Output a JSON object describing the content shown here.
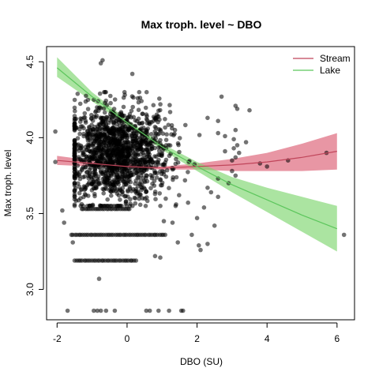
{
  "chart_data": {
    "type": "scatter",
    "title": "Max troph. level ~ DBO",
    "xlabel": "DBO (SU)",
    "ylabel": "Max troph. level",
    "xlim": [
      -2.3,
      6.5
    ],
    "ylim": [
      2.8,
      4.6
    ],
    "xticks": [
      -2,
      0,
      2,
      4,
      6
    ],
    "yticks": [
      3.0,
      3.5,
      4.0,
      4.5
    ],
    "xtick_labels": [
      "-2",
      "0",
      "2",
      "4",
      "6"
    ],
    "ytick_labels": [
      "3.0",
      "3.5",
      "4.0",
      "4.5"
    ],
    "grid": false,
    "legend": {
      "placement": "top-right",
      "entries": [
        "Stream",
        "Lake"
      ]
    },
    "point_color": "#000000",
    "point_alpha": 0.55,
    "series": [
      {
        "name": "Stream",
        "color": "#c0455a",
        "band_color": "#dc5d73",
        "x": [
          -2.0,
          -1.0,
          0.0,
          1.0,
          2.0,
          3.0,
          4.0,
          5.0,
          6.0
        ],
        "y": [
          3.85,
          3.83,
          3.81,
          3.8,
          3.81,
          3.82,
          3.84,
          3.87,
          3.91
        ],
        "lower": [
          3.82,
          3.81,
          3.8,
          3.79,
          3.79,
          3.78,
          3.78,
          3.78,
          3.79
        ],
        "upper": [
          3.88,
          3.85,
          3.83,
          3.81,
          3.83,
          3.86,
          3.9,
          3.96,
          4.03
        ]
      },
      {
        "name": "Lake",
        "color": "#5cc65c",
        "band_color": "#7ed66e",
        "x": [
          -2.0,
          -1.0,
          0.0,
          1.0,
          2.0,
          3.0,
          4.0,
          5.0,
          6.0
        ],
        "y": [
          4.46,
          4.27,
          4.1,
          3.94,
          3.81,
          3.69,
          3.59,
          3.49,
          3.4
        ],
        "lower": [
          4.4,
          4.24,
          4.08,
          3.92,
          3.78,
          3.64,
          3.51,
          3.38,
          3.25
        ],
        "upper": [
          4.53,
          4.3,
          4.12,
          3.96,
          3.84,
          3.74,
          3.67,
          3.61,
          3.55
        ]
      }
    ],
    "scatter_points": [
      {
        "x": -0.7,
        "y": 4.51
      },
      {
        "x": -0.75,
        "y": 4.49
      },
      {
        "x": 0.15,
        "y": 4.42
      },
      {
        "x": 2.7,
        "y": 4.27
      },
      {
        "x": 3.1,
        "y": 4.21
      },
      {
        "x": 3.15,
        "y": 4.19
      },
      {
        "x": 3.5,
        "y": 4.18
      },
      {
        "x": 2.3,
        "y": 4.13
      },
      {
        "x": 2.6,
        "y": 4.11
      },
      {
        "x": 3.1,
        "y": 4.05
      },
      {
        "x": 2.6,
        "y": 4.03
      },
      {
        "x": 2.8,
        "y": 4.01
      },
      {
        "x": 3.05,
        "y": 3.99
      },
      {
        "x": 3.4,
        "y": 3.97
      },
      {
        "x": 3.15,
        "y": 3.95
      },
      {
        "x": 3.05,
        "y": 3.93
      },
      {
        "x": 2.8,
        "y": 3.91
      },
      {
        "x": 3.2,
        "y": 3.9
      },
      {
        "x": 3.1,
        "y": 3.87
      },
      {
        "x": 3.0,
        "y": 3.85
      },
      {
        "x": 3.8,
        "y": 3.83
      },
      {
        "x": 4.0,
        "y": 3.81
      },
      {
        "x": 4.6,
        "y": 3.85
      },
      {
        "x": 5.7,
        "y": 3.9
      },
      {
        "x": 3.0,
        "y": 3.78
      },
      {
        "x": 3.1,
        "y": 3.75
      },
      {
        "x": 2.6,
        "y": 3.73
      },
      {
        "x": 2.9,
        "y": 3.7
      },
      {
        "x": 2.3,
        "y": 3.67
      },
      {
        "x": 2.4,
        "y": 3.64
      },
      {
        "x": 2.6,
        "y": 3.61
      },
      {
        "x": 2.2,
        "y": 3.54
      },
      {
        "x": 2.0,
        "y": 3.47
      },
      {
        "x": 2.5,
        "y": 3.42
      },
      {
        "x": 1.85,
        "y": 3.36
      },
      {
        "x": 2.3,
        "y": 3.3
      },
      {
        "x": 2.05,
        "y": 3.29
      },
      {
        "x": 2.1,
        "y": 3.26
      },
      {
        "x": 1.45,
        "y": 3.31
      },
      {
        "x": 0.8,
        "y": 3.22
      },
      {
        "x": 0.95,
        "y": 3.21
      },
      {
        "x": -0.8,
        "y": 3.07
      },
      {
        "x": 6.2,
        "y": 3.36
      },
      {
        "x": -1.7,
        "y": 2.86
      },
      {
        "x": -1.55,
        "y": 3.31
      },
      {
        "x": -1.8,
        "y": 3.44
      },
      {
        "x": -1.85,
        "y": 3.52
      },
      {
        "x": -2.05,
        "y": 3.84
      },
      {
        "x": -2.05,
        "y": 4.04
      },
      {
        "x": 1.3,
        "y": 3.44
      },
      {
        "x": 1.05,
        "y": 3.45
      },
      {
        "x": 1.4,
        "y": 3.56
      },
      {
        "x": 1.55,
        "y": 2.86
      },
      {
        "x": 1.6,
        "y": 2.86
      },
      {
        "x": 0.55,
        "y": 2.86
      },
      {
        "x": 0.65,
        "y": 2.86
      },
      {
        "x": 0.9,
        "y": 2.86
      },
      {
        "x": 1.2,
        "y": 2.86
      },
      {
        "x": -0.95,
        "y": 2.86
      },
      {
        "x": -0.85,
        "y": 2.86
      },
      {
        "x": -0.75,
        "y": 2.86
      },
      {
        "x": -0.6,
        "y": 2.86
      },
      {
        "x": -0.35,
        "y": 2.86
      }
    ],
    "strip_rows": [
      {
        "y": 3.53,
        "x_min": -1.3,
        "x_max": 0.1
      },
      {
        "y": 3.36,
        "x_min": -1.6,
        "x_max": 1.1
      },
      {
        "y": 3.19,
        "x_min": -1.5,
        "x_max": 0.3
      }
    ],
    "cloud": {
      "center_x": -0.3,
      "center_y": 3.89,
      "count": 1500,
      "x_sd": 0.75,
      "y_sd": 0.16
    }
  }
}
